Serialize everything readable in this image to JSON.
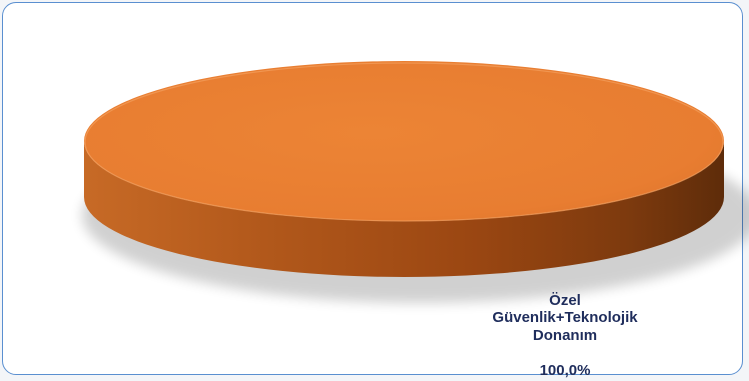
{
  "colors": {
    "slice_top": "#e97f33",
    "slice_side": "#a04c14",
    "frame_border": "#5a8fd0",
    "label_text": "#1f2d5c"
  },
  "chart_data": {
    "type": "pie",
    "title": "",
    "legend": "none",
    "slices": [
      {
        "label": "Özel\nGüvenlik+Teknolojik\nDonanım",
        "value": 100.0,
        "value_label": "100,0%",
        "color": "#e97f33"
      }
    ]
  }
}
